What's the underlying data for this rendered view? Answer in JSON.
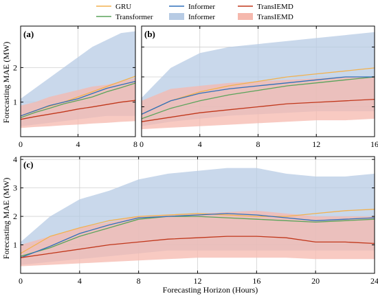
{
  "legend": {
    "items": [
      {
        "label": "GRU",
        "kind": "line",
        "color": "#f2b14e"
      },
      {
        "label": "Transformer",
        "kind": "line",
        "color": "#5aa35a"
      },
      {
        "label": "Informer",
        "kind": "line",
        "color": "#2f6fba"
      },
      {
        "label": "Informer",
        "kind": "band",
        "color": "#b7cbe4"
      },
      {
        "label": "TransIEMD",
        "kind": "line",
        "color": "#c0361a"
      },
      {
        "label": "TransIEMD",
        "kind": "band",
        "color": "#f5b8ad"
      }
    ]
  },
  "xlabel": "Forecasting Horizon (Hours)",
  "ylabel_top": "Forecasting MAE (MW)",
  "ylabel_bottom": "Forecasting MAE (MW)",
  "chart_data": [
    {
      "panel": "(a)",
      "type": "line",
      "xlim": [
        0,
        8
      ],
      "ylim": [
        0,
        3.2
      ],
      "xticks": [
        0,
        4,
        8
      ],
      "yticks": [
        1,
        2
      ],
      "x": [
        0,
        1,
        2,
        3,
        4,
        5,
        6,
        7,
        8
      ],
      "series": [
        {
          "name": "GRU",
          "color": "#f2b14e",
          "values": [
            0.6,
            0.75,
            0.88,
            1.0,
            1.15,
            1.3,
            1.45,
            1.6,
            1.75
          ]
        },
        {
          "name": "Transformer",
          "color": "#5aa35a",
          "values": [
            0.55,
            0.7,
            0.82,
            0.95,
            1.05,
            1.15,
            1.3,
            1.42,
            1.55
          ]
        },
        {
          "name": "Informer",
          "color": "#2f6fba",
          "values": [
            0.6,
            0.75,
            0.9,
            1.0,
            1.1,
            1.25,
            1.4,
            1.5,
            1.6
          ]
        },
        {
          "name": "TransIEMD",
          "color": "#c0361a",
          "values": [
            0.5,
            0.58,
            0.65,
            0.72,
            0.8,
            0.86,
            0.93,
            1.0,
            1.05
          ]
        }
      ],
      "bands": [
        {
          "name": "Informer",
          "color": "#b7cbe4",
          "upper": [
            1.1,
            1.4,
            1.7,
            2.0,
            2.3,
            2.6,
            2.8,
            3.0,
            3.05
          ],
          "lower": [
            0.3,
            0.35,
            0.4,
            0.45,
            0.5,
            0.55,
            0.6,
            0.6,
            0.6
          ]
        },
        {
          "name": "TransIEMD",
          "color": "#f5b8ad",
          "upper": [
            0.9,
            1.0,
            1.15,
            1.25,
            1.35,
            1.45,
            1.5,
            1.6,
            1.7
          ],
          "lower": [
            0.25,
            0.28,
            0.3,
            0.33,
            0.35,
            0.38,
            0.4,
            0.43,
            0.45
          ]
        }
      ]
    },
    {
      "panel": "(b)",
      "type": "line",
      "xlim": [
        0,
        16
      ],
      "ylim": [
        0,
        3.7
      ],
      "xticks": [
        0,
        4,
        8,
        12,
        16
      ],
      "yticks": [
        1,
        2,
        3
      ],
      "x": [
        0,
        2,
        4,
        6,
        8,
        10,
        12,
        14,
        16
      ],
      "series": [
        {
          "name": "GRU",
          "color": "#f2b14e",
          "values": [
            0.75,
            1.2,
            1.5,
            1.7,
            1.85,
            2.0,
            2.1,
            2.2,
            2.3
          ]
        },
        {
          "name": "Transformer",
          "color": "#5aa35a",
          "values": [
            0.6,
            0.95,
            1.2,
            1.4,
            1.55,
            1.7,
            1.8,
            1.9,
            2.0
          ]
        },
        {
          "name": "Informer",
          "color": "#2f6fba",
          "values": [
            0.75,
            1.2,
            1.45,
            1.6,
            1.7,
            1.8,
            1.9,
            2.0,
            2.0
          ]
        },
        {
          "name": "TransIEMD",
          "color": "#c0361a",
          "values": [
            0.5,
            0.65,
            0.8,
            0.9,
            1.0,
            1.1,
            1.15,
            1.2,
            1.25
          ]
        }
      ],
      "bands": [
        {
          "name": "Informer",
          "color": "#b7cbe4",
          "upper": [
            1.3,
            2.3,
            2.8,
            3.0,
            3.1,
            3.2,
            3.3,
            3.4,
            3.5
          ],
          "lower": [
            0.35,
            0.5,
            0.6,
            0.7,
            0.75,
            0.8,
            0.85,
            0.85,
            0.85
          ]
        },
        {
          "name": "TransIEMD",
          "color": "#f5b8ad",
          "upper": [
            1.2,
            1.6,
            1.7,
            1.8,
            1.85,
            1.9,
            1.95,
            2.0,
            2.0
          ],
          "lower": [
            0.25,
            0.3,
            0.35,
            0.4,
            0.45,
            0.5,
            0.55,
            0.55,
            0.6
          ]
        }
      ]
    },
    {
      "panel": "(c)",
      "type": "line",
      "xlim": [
        0,
        24
      ],
      "ylim": [
        0,
        4.1
      ],
      "xticks": [
        0,
        4,
        8,
        12,
        16,
        20,
        24
      ],
      "yticks": [
        1,
        2,
        3,
        4
      ],
      "x": [
        0,
        2,
        4,
        6,
        8,
        10,
        12,
        14,
        16,
        18,
        20,
        22,
        24
      ],
      "series": [
        {
          "name": "GRU",
          "color": "#f2b14e",
          "values": [
            0.7,
            1.3,
            1.6,
            1.85,
            2.0,
            2.05,
            2.1,
            2.05,
            2.0,
            2.0,
            2.1,
            2.2,
            2.25
          ]
        },
        {
          "name": "Transformer",
          "color": "#5aa35a",
          "values": [
            0.6,
            0.9,
            1.3,
            1.6,
            1.9,
            2.0,
            2.0,
            1.95,
            1.9,
            1.85,
            1.8,
            1.85,
            1.9
          ]
        },
        {
          "name": "Informer",
          "color": "#2f6fba",
          "values": [
            0.55,
            0.95,
            1.4,
            1.7,
            1.95,
            2.0,
            2.05,
            2.1,
            2.05,
            1.95,
            1.85,
            1.9,
            1.95
          ]
        },
        {
          "name": "TransIEMD",
          "color": "#c0361a",
          "values": [
            0.55,
            0.7,
            0.85,
            1.0,
            1.1,
            1.2,
            1.25,
            1.3,
            1.3,
            1.25,
            1.1,
            1.1,
            1.05
          ]
        }
      ],
      "bands": [
        {
          "name": "Informer",
          "color": "#b7cbe4",
          "upper": [
            1.1,
            2.0,
            2.6,
            2.9,
            3.3,
            3.5,
            3.6,
            3.7,
            3.7,
            3.5,
            3.4,
            3.4,
            3.5
          ],
          "lower": [
            0.3,
            0.4,
            0.5,
            0.6,
            0.7,
            0.8,
            0.8,
            0.8,
            0.8,
            0.8,
            0.8,
            0.8,
            0.8
          ]
        },
        {
          "name": "TransIEMD",
          "color": "#f5b8ad",
          "upper": [
            1.0,
            1.3,
            1.6,
            1.8,
            2.0,
            2.05,
            2.1,
            2.15,
            2.2,
            2.1,
            2.0,
            2.0,
            2.0
          ],
          "lower": [
            0.25,
            0.3,
            0.35,
            0.4,
            0.45,
            0.5,
            0.55,
            0.55,
            0.55,
            0.55,
            0.5,
            0.5,
            0.5
          ]
        }
      ]
    }
  ]
}
